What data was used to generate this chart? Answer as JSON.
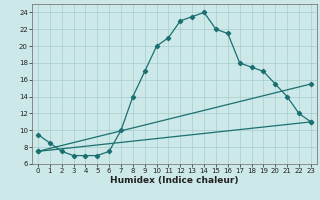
{
  "xlabel": "Humidex (Indice chaleur)",
  "bg_color": "#cde8e8",
  "line_color": "#1a7070",
  "xlim": [
    -0.5,
    23.5
  ],
  "ylim": [
    6,
    25
  ],
  "xticks": [
    0,
    1,
    2,
    3,
    4,
    5,
    6,
    7,
    8,
    9,
    10,
    11,
    12,
    13,
    14,
    15,
    16,
    17,
    18,
    19,
    20,
    21,
    22,
    23
  ],
  "yticks": [
    6,
    8,
    10,
    12,
    14,
    16,
    18,
    20,
    22,
    24
  ],
  "series1_x": [
    0,
    1,
    2,
    3,
    4,
    5,
    6,
    7,
    8,
    9,
    10,
    11,
    12,
    13,
    14,
    15,
    16,
    17,
    18,
    19,
    20,
    21,
    22,
    23
  ],
  "series1_y": [
    9.5,
    8.5,
    7.5,
    7.0,
    7.0,
    7.0,
    7.5,
    10.0,
    14.0,
    17.0,
    20.0,
    21.0,
    23.0,
    23.5,
    24.0,
    22.0,
    21.5,
    18.0,
    17.5,
    17.0,
    15.5,
    14.0,
    12.0,
    11.0
  ],
  "series2_x": [
    0,
    23
  ],
  "series2_y": [
    7.5,
    15.5
  ],
  "series3_x": [
    0,
    23
  ],
  "series3_y": [
    7.5,
    11.0
  ],
  "grid_color": "#a8cccc",
  "tick_fontsize": 5.0,
  "xlabel_fontsize": 6.5,
  "marker_size": 2.2,
  "linewidth": 0.9
}
